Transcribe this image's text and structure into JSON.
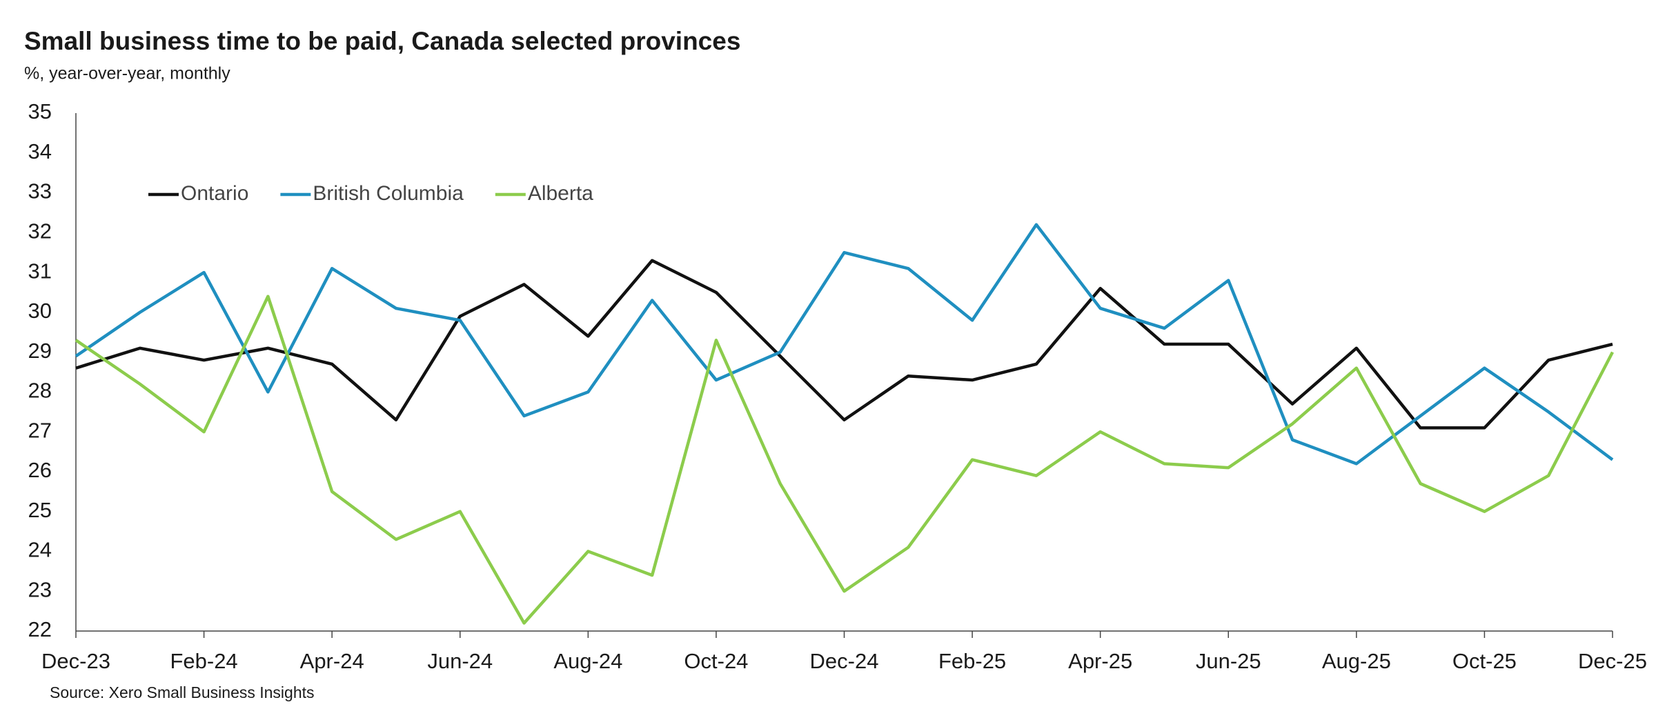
{
  "chart_data": {
    "type": "line",
    "title": "Small business time to be paid, Canada selected provinces",
    "subtitle": "%, year-over-year, monthly",
    "source": "Source: Xero Small Business Insights",
    "categories": [
      "Dec-23",
      null,
      "Feb-24",
      null,
      "Apr-24",
      null,
      "Jun-24",
      null,
      "Aug-24",
      null,
      "Oct-24",
      null,
      "Dec-24",
      null,
      "Feb-25",
      null,
      "Apr-25",
      null,
      "Jun-25",
      null,
      "Aug-25",
      null,
      "Oct-25",
      null,
      "Dec-25"
    ],
    "series": [
      {
        "name": "Ontario",
        "color": "#111111",
        "values": [
          28.6,
          29.1,
          28.8,
          29.1,
          28.7,
          27.3,
          29.9,
          30.7,
          29.4,
          31.3,
          30.5,
          28.9,
          27.3,
          28.4,
          28.3,
          28.7,
          30.6,
          29.2,
          29.2,
          27.7,
          29.1,
          27.1,
          27.1,
          28.8,
          29.2
        ]
      },
      {
        "name": "British Columbia",
        "color": "#1f8fc0",
        "values": [
          28.9,
          30.0,
          31.0,
          28.0,
          31.1,
          30.1,
          29.8,
          27.4,
          28.0,
          30.3,
          28.3,
          29.0,
          31.5,
          31.1,
          29.8,
          32.2,
          30.1,
          29.6,
          30.8,
          26.8,
          26.2,
          27.4,
          28.6,
          27.5,
          26.3
        ]
      },
      {
        "name": "Alberta",
        "color": "#8ccc4c",
        "values": [
          29.3,
          28.2,
          27.0,
          30.4,
          25.5,
          24.3,
          25.0,
          22.2,
          24.0,
          23.4,
          29.3,
          25.7,
          23.0,
          24.1,
          26.3,
          25.9,
          27.0,
          26.2,
          26.1,
          27.2,
          28.6,
          25.7,
          25.0,
          25.9,
          29.0
        ]
      }
    ],
    "ylim": [
      22,
      35
    ],
    "yticks": [
      22,
      23,
      24,
      25,
      26,
      27,
      28,
      29,
      30,
      31,
      32,
      33,
      34,
      35
    ],
    "grid": false,
    "legend": "upper left"
  }
}
